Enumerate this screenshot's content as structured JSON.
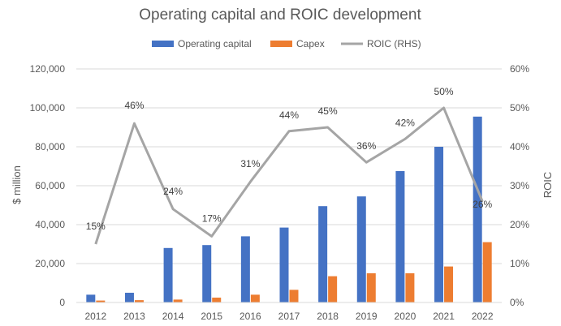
{
  "chart_data": {
    "type": "bar",
    "title": "Operating capital and ROIC development",
    "categories": [
      "2012",
      "2013",
      "2014",
      "2015",
      "2016",
      "2017",
      "2018",
      "2019",
      "2020",
      "2021",
      "2022"
    ],
    "series": [
      {
        "name": "Operating capital",
        "type": "bar",
        "axis": "left",
        "color": "#4472C4",
        "values": [
          4000,
          5000,
          28000,
          29500,
          34000,
          38500,
          49500,
          54500,
          67500,
          80000,
          95500
        ]
      },
      {
        "name": "Capex",
        "type": "bar",
        "axis": "left",
        "color": "#ED7D31",
        "values": [
          1000,
          1200,
          1500,
          2500,
          4000,
          6500,
          13500,
          15000,
          15000,
          18500,
          31000
        ]
      },
      {
        "name": "ROIC (RHS)",
        "type": "line",
        "axis": "right",
        "color": "#A5A5A5",
        "values": [
          15,
          46,
          24,
          17,
          31,
          44,
          45,
          36,
          42,
          50,
          26
        ],
        "data_labels": [
          "15%",
          "46%",
          "24%",
          "17%",
          "31%",
          "44%",
          "45%",
          "36%",
          "42%",
          "50%",
          "26%"
        ]
      }
    ],
    "ylabel": "$ million",
    "ylabel_right": "ROIC",
    "ylim": [
      0,
      120000
    ],
    "ylim_right": [
      0,
      60
    ],
    "yticks": [
      "0",
      "20,000",
      "40,000",
      "60,000",
      "80,000",
      "100,000",
      "120,000"
    ],
    "yticks_right": [
      "0%",
      "10%",
      "20%",
      "30%",
      "40%",
      "50%",
      "60%"
    ],
    "grid": true,
    "legend_position": "top"
  }
}
